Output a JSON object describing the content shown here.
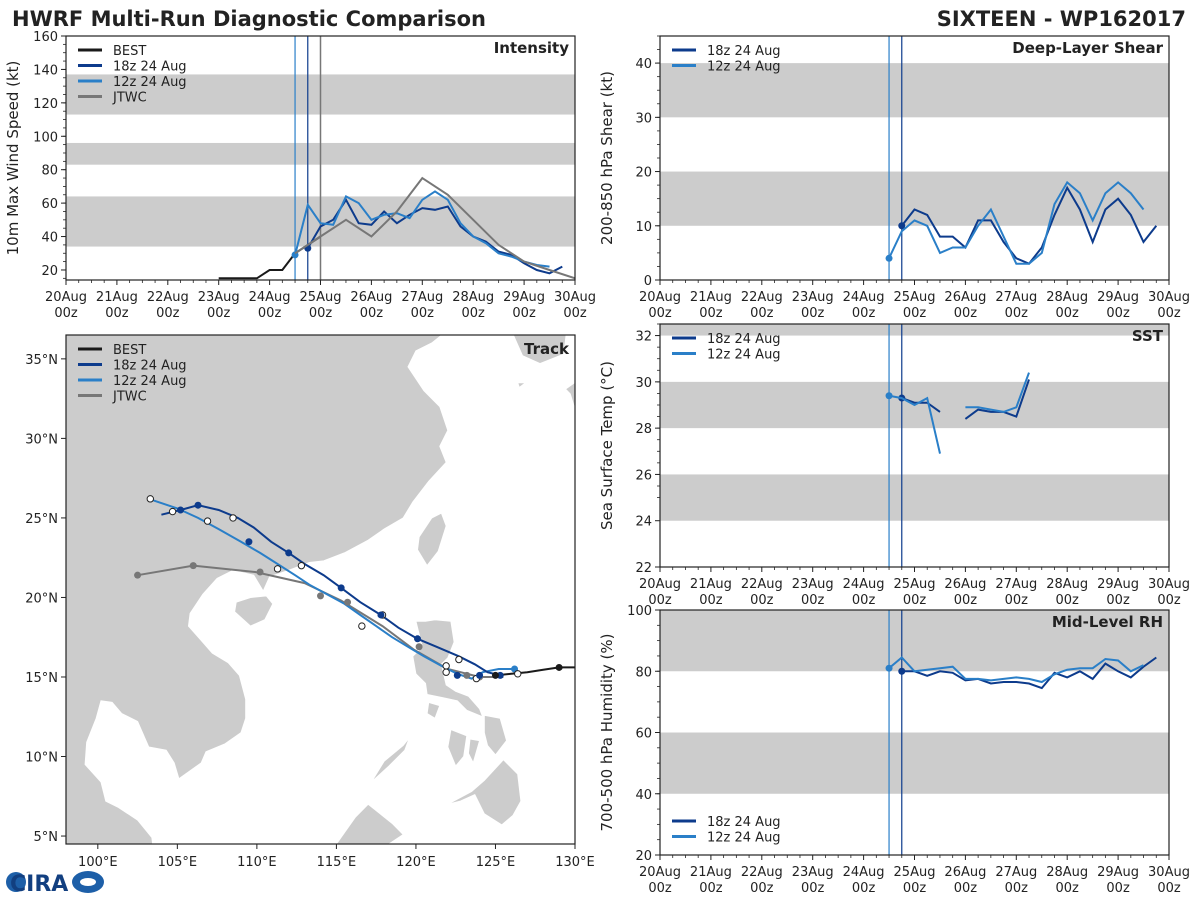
{
  "header": {
    "title": "HWRF Multi-Run Diagnostic Comparison",
    "storm": "SIXTEEN - WP162017"
  },
  "logo": {
    "text": "CIRA"
  },
  "colors": {
    "best": "#1a1a1a",
    "run18": "#0d3b8c",
    "run12": "#2a7fc8",
    "jtwc": "#777777",
    "band": "#cccccc"
  },
  "time_axis": {
    "labels": [
      "20Aug\n00z",
      "21Aug\n00z",
      "22Aug\n00z",
      "23Aug\n00z",
      "24Aug\n00z",
      "25Aug\n00z",
      "26Aug\n00z",
      "27Aug\n00z",
      "28Aug\n00z",
      "29Aug\n00z",
      "30Aug\n00z"
    ],
    "xlim_days": [
      0,
      10
    ],
    "init_lines_days": [
      4.5,
      4.75
    ]
  },
  "chart_data": [
    {
      "id": "intensity",
      "type": "line",
      "title": "Intensity",
      "ylabel": "10m Max Wind Speed (kt)",
      "ylim": [
        14,
        160
      ],
      "yticks": [
        20,
        40,
        60,
        80,
        100,
        120,
        140,
        160
      ],
      "bands": [
        [
          34,
          64
        ],
        [
          83,
          96
        ],
        [
          113,
          137
        ]
      ],
      "extra_vlines_days": [
        5.0
      ],
      "legend": [
        "BEST",
        "18z 24 Aug",
        "12z 24 Aug",
        "JTWC"
      ],
      "series": [
        {
          "name": "BEST",
          "color_key": "best",
          "x": [
            3.0,
            3.25,
            3.5,
            3.75,
            4.0,
            4.25,
            4.5,
            4.75,
            5.0
          ],
          "y": [
            15,
            15,
            15,
            15,
            20,
            20,
            30,
            35,
            40
          ]
        },
        {
          "name": "18z 24 Aug",
          "color_key": "run18",
          "marker_first": true,
          "x": [
            4.75,
            5.0,
            5.25,
            5.5,
            5.75,
            6.0,
            6.25,
            6.5,
            6.75,
            7.0,
            7.25,
            7.5,
            7.75,
            8.0,
            8.25,
            8.5,
            8.75,
            9.0,
            9.25,
            9.5,
            9.75
          ],
          "y": [
            33,
            46,
            50,
            62,
            48,
            47,
            55,
            48,
            53,
            57,
            56,
            58,
            46,
            40,
            37,
            31,
            29,
            24,
            20,
            18,
            22
          ]
        },
        {
          "name": "12z 24 Aug",
          "color_key": "run12",
          "marker_first": true,
          "x": [
            4.5,
            4.75,
            5.0,
            5.25,
            5.5,
            5.75,
            6.0,
            6.25,
            6.5,
            6.75,
            7.0,
            7.25,
            7.5,
            7.75,
            8.0,
            8.25,
            8.5,
            8.75,
            9.0,
            9.25,
            9.5
          ],
          "y": [
            29,
            59,
            48,
            47,
            64,
            60,
            50,
            53,
            54,
            51,
            62,
            67,
            62,
            48,
            40,
            36,
            30,
            28,
            25,
            23,
            22
          ]
        },
        {
          "name": "JTWC",
          "color_key": "jtwc",
          "x": [
            4.5,
            5.0,
            5.5,
            6.0,
            6.5,
            7.0,
            7.5,
            8.0,
            8.5,
            9.0,
            9.5,
            10.0
          ],
          "y": [
            30,
            40,
            50,
            40,
            55,
            75,
            65,
            50,
            35,
            25,
            20,
            15
          ]
        }
      ]
    },
    {
      "id": "shear",
      "type": "line",
      "title": "Deep-Layer Shear",
      "ylabel": "200-850 hPa Shear (kt)",
      "ylim": [
        0,
        45
      ],
      "yticks": [
        0,
        10,
        20,
        30,
        40
      ],
      "bands": [
        [
          10,
          20
        ],
        [
          30,
          40
        ]
      ],
      "legend": [
        "18z 24 Aug",
        "12z 24 Aug"
      ],
      "series": [
        {
          "name": "18z 24 Aug",
          "color_key": "run18",
          "marker_first": true,
          "x": [
            4.75,
            5.0,
            5.25,
            5.5,
            5.75,
            6.0,
            6.25,
            6.5,
            6.75,
            7.0,
            7.25,
            7.5,
            7.75,
            8.0,
            8.25,
            8.5,
            8.75,
            9.0,
            9.25,
            9.5,
            9.75
          ],
          "y": [
            10,
            13,
            12,
            8,
            8,
            6,
            11,
            11,
            7,
            4,
            3,
            6,
            12,
            17,
            13,
            7,
            13,
            15,
            12,
            7,
            10
          ]
        },
        {
          "name": "12z 24 Aug",
          "color_key": "run12",
          "marker_first": true,
          "x": [
            4.5,
            4.75,
            5.0,
            5.25,
            5.5,
            5.75,
            6.0,
            6.25,
            6.5,
            6.75,
            7.0,
            7.25,
            7.5,
            7.75,
            8.0,
            8.25,
            8.5,
            8.75,
            9.0,
            9.25,
            9.5
          ],
          "y": [
            4,
            9,
            11,
            10,
            5,
            6,
            6,
            10,
            13,
            8,
            3,
            3,
            5,
            14,
            18,
            16,
            11,
            16,
            18,
            16,
            13
          ]
        }
      ]
    },
    {
      "id": "sst",
      "type": "line",
      "title": "SST",
      "ylabel": "Sea Surface Temp (°C)",
      "ylim": [
        22,
        32.5
      ],
      "yticks": [
        22,
        24,
        26,
        28,
        30,
        32
      ],
      "bands": [
        [
          24,
          26
        ],
        [
          28,
          30
        ],
        [
          32,
          32.5
        ]
      ],
      "legend": [
        "18z 24 Aug",
        "12z 24 Aug"
      ],
      "series": [
        {
          "name": "18z 24 Aug",
          "color_key": "run18",
          "marker_first": true,
          "segments": [
            {
              "x": [
                4.75,
                5.0,
                5.25,
                5.5
              ],
              "y": [
                29.3,
                29.1,
                29.1,
                28.7
              ]
            },
            {
              "x": [
                6.0,
                6.25,
                6.5,
                6.75,
                7.0,
                7.25
              ],
              "y": [
                28.4,
                28.8,
                28.7,
                28.7,
                28.5,
                30.1
              ]
            }
          ]
        },
        {
          "name": "12z 24 Aug",
          "color_key": "run12",
          "marker_first": true,
          "segments": [
            {
              "x": [
                4.5,
                4.75,
                5.0,
                5.25,
                5.5
              ],
              "y": [
                29.4,
                29.3,
                29.0,
                29.3,
                26.9
              ]
            },
            {
              "x": [
                6.0,
                6.25,
                6.5,
                6.75,
                7.0,
                7.25
              ],
              "y": [
                28.9,
                28.9,
                28.8,
                28.7,
                28.9,
                30.4
              ]
            }
          ]
        }
      ]
    },
    {
      "id": "rh",
      "type": "line",
      "title": "Mid-Level RH",
      "ylabel": "700-500 hPa Humidity (%)",
      "ylim": [
        20,
        100
      ],
      "yticks": [
        20,
        40,
        60,
        80,
        100
      ],
      "bands": [
        [
          40,
          60
        ],
        [
          80,
          100
        ]
      ],
      "legend": [
        "18z 24 Aug",
        "12z 24 Aug"
      ],
      "series": [
        {
          "name": "18z 24 Aug",
          "color_key": "run18",
          "marker_first": true,
          "x": [
            4.75,
            5.0,
            5.25,
            5.5,
            5.75,
            6.0,
            6.25,
            6.5,
            6.75,
            7.0,
            7.25,
            7.5,
            7.75,
            8.0,
            8.25,
            8.5,
            8.75,
            9.0,
            9.25,
            9.5,
            9.75
          ],
          "y": [
            80,
            80,
            78.5,
            80,
            79.5,
            77,
            77.5,
            76,
            76.5,
            76.5,
            76,
            74.5,
            79.5,
            78,
            80,
            77.5,
            82.5,
            80,
            78,
            81.5,
            84.5
          ]
        },
        {
          "name": "12z 24 Aug",
          "color_key": "run12",
          "marker_first": true,
          "x": [
            4.5,
            4.75,
            5.0,
            5.25,
            5.5,
            5.75,
            6.0,
            6.25,
            6.5,
            6.75,
            7.0,
            7.25,
            7.5,
            7.75,
            8.0,
            8.25,
            8.5,
            8.75,
            9.0,
            9.25,
            9.5
          ],
          "y": [
            81,
            84.5,
            80,
            80.5,
            81,
            81.5,
            77.5,
            77.5,
            77,
            77.5,
            78,
            77.5,
            76.5,
            79,
            80.5,
            81,
            81,
            84,
            83.5,
            80,
            82
          ]
        }
      ]
    },
    {
      "id": "track",
      "type": "map-line",
      "title": "Track",
      "xlim": [
        98,
        130
      ],
      "ylim": [
        4.5,
        36.5
      ],
      "xticks": [
        100,
        105,
        110,
        115,
        120,
        125,
        130
      ],
      "xtick_labels": [
        "100°E",
        "105°E",
        "110°E",
        "115°E",
        "120°E",
        "125°E",
        "130°E"
      ],
      "yticks": [
        5,
        10,
        15,
        20,
        25,
        30,
        35
      ],
      "ytick_labels": [
        "5°N",
        "10°N",
        "15°N",
        "20°N",
        "25°N",
        "30°N",
        "35°N"
      ],
      "legend": [
        "BEST",
        "18z 24 Aug",
        "12z 24 Aug",
        "JTWC"
      ],
      "series": [
        {
          "name": "BEST",
          "color_key": "best",
          "lon": [
            125.0,
            126.0,
            127.0,
            128.0,
            129.0,
            130.0
          ],
          "lat": [
            15.1,
            15.2,
            15.3,
            15.45,
            15.6,
            15.6
          ],
          "dots_lon": [
            125.0,
            129.0
          ],
          "dots_lat": [
            15.1,
            15.6
          ]
        },
        {
          "name": "18z 24 Aug",
          "color_key": "run18",
          "lon": [
            125.3,
            124.5,
            123.7,
            122.7,
            121.3,
            120.1,
            118.9,
            117.8,
            116.5,
            115.3,
            114.2,
            113.0,
            112.0,
            110.9,
            109.8,
            108.8,
            107.6,
            106.3,
            105.2,
            104.0
          ],
          "lat": [
            15.1,
            15.3,
            15.8,
            16.3,
            16.9,
            17.4,
            18.1,
            18.9,
            19.7,
            20.6,
            21.4,
            22.1,
            22.8,
            23.5,
            24.4,
            25.0,
            25.5,
            25.8,
            25.5,
            25.2
          ],
          "dots_lon": [
            125.3,
            124.0,
            122.6,
            120.1,
            117.8,
            115.3,
            112.0,
            109.5,
            106.3,
            105.2
          ],
          "dots_lat": [
            15.1,
            15.1,
            15.1,
            17.4,
            18.9,
            20.6,
            22.8,
            23.5,
            25.8,
            25.5
          ],
          "open_dots_lon": [],
          "open_dots_lat": []
        },
        {
          "name": "12z 24 Aug",
          "color_key": "run12",
          "lon": [
            126.2,
            125.2,
            124.2,
            123.5,
            122.6,
            121.6,
            120.5,
            119.5,
            118.5,
            117.5,
            116.5,
            115.5,
            114.4,
            113.3,
            112.4,
            111.3,
            110.2,
            109.0,
            107.6,
            106.3,
            105.0,
            103.5
          ],
          "lat": [
            15.5,
            15.5,
            15.3,
            14.9,
            15.2,
            15.7,
            16.3,
            16.9,
            17.5,
            18.2,
            18.9,
            19.6,
            20.2,
            20.8,
            21.4,
            22.1,
            22.8,
            23.5,
            24.3,
            25.0,
            25.6,
            26.1
          ],
          "dots_lon": [
            126.2
          ],
          "dots_lat": [
            15.5
          ],
          "open_dots_lon": [
            126.4,
            123.8,
            121.9,
            122.7,
            117.9,
            116.6,
            112.8,
            111.3,
            108.5,
            106.9,
            104.7,
            103.3
          ],
          "open_dots_lat": [
            15.2,
            14.9,
            15.7,
            16.1,
            18.9,
            18.2,
            22.0,
            21.8,
            25.0,
            24.8,
            25.4,
            26.2
          ]
        },
        {
          "name": "JTWC",
          "color_key": "jtwc",
          "lon": [
            125.5,
            124.0,
            122.0,
            119.9,
            117.9,
            115.3,
            113.0,
            109.9,
            106.0,
            102.5
          ],
          "lat": [
            15.0,
            15.0,
            15.5,
            16.7,
            18.2,
            19.8,
            20.9,
            21.6,
            22.0,
            21.4
          ],
          "dots_lon": [
            124.0,
            123.2,
            120.2,
            115.7,
            114.0,
            110.2,
            106.0,
            102.5
          ],
          "dots_lat": [
            15.0,
            15.1,
            16.9,
            19.7,
            20.1,
            21.6,
            22.0,
            21.4
          ],
          "open_dots_lon": [
            121.9
          ],
          "open_dots_lat": [
            15.3
          ]
        }
      ]
    }
  ]
}
